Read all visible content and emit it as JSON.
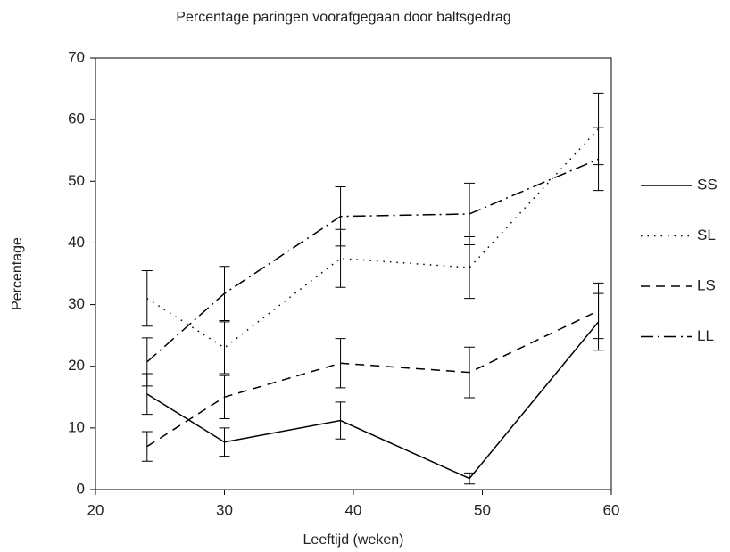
{
  "chart_data": {
    "type": "line",
    "title": "Percentage paringen voorafgegaan door baltsgedrag",
    "x_label": "Leeftijd (weken)",
    "y_label": "Percentage",
    "x": [
      24,
      30,
      39,
      49,
      59
    ],
    "series": [
      {
        "name": "SS",
        "color": "#000000",
        "style": "solid",
        "values": [
          15.5,
          7.7,
          11.2,
          1.8,
          27.2
        ],
        "errors": [
          3.3,
          2.3,
          3.0,
          0.9,
          4.6
        ]
      },
      {
        "name": "SL",
        "color": "#000000",
        "style": "dotted",
        "values": [
          31,
          23,
          37.5,
          36,
          58.5
        ],
        "errors": [
          4.5,
          4.2,
          4.7,
          5.0,
          5.8
        ]
      },
      {
        "name": "LS",
        "color": "#000000",
        "style": "dashed",
        "values": [
          7,
          15,
          20.5,
          19,
          29
        ],
        "errors": [
          2.4,
          3.5,
          4.0,
          4.1,
          4.5
        ]
      },
      {
        "name": "LL",
        "color": "#000000",
        "style": "dashdot",
        "values": [
          20.7,
          31.8,
          44.3,
          44.7,
          53.6
        ],
        "errors": [
          3.9,
          4.4,
          4.8,
          5.0,
          5.1
        ]
      }
    ],
    "xlim": [
      20,
      60
    ],
    "xticks": [
      20,
      30,
      40,
      50,
      60
    ],
    "ylim": [
      0,
      70
    ],
    "yticks": [
      0,
      10,
      20,
      30,
      40,
      50,
      60,
      70
    ],
    "grid": false,
    "legend": "right"
  }
}
